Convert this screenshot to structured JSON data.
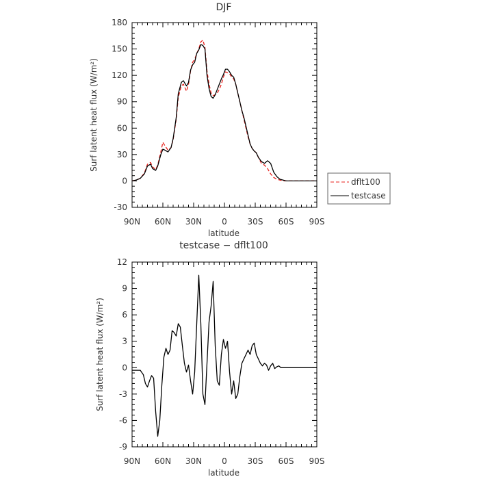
{
  "chart_data": [
    {
      "type": "line",
      "title": "DJF",
      "xlabel": "latitude",
      "ylabel": "Surf latent heat flux (W/m²)",
      "ylim": [
        -30,
        180
      ],
      "yticks": [
        -30,
        0,
        30,
        60,
        90,
        120,
        150,
        180
      ],
      "xlim": [
        90,
        -90
      ],
      "xticks": [
        90,
        60,
        30,
        0,
        -30,
        -60,
        -90
      ],
      "xtick_labels": [
        "90N",
        "60N",
        "30N",
        "0",
        "30S",
        "60S",
        "90S"
      ],
      "grid": false,
      "legend_position": "right",
      "series": [
        {
          "name": "dflt100",
          "color": "#e8201b",
          "dash": "dashed",
          "x": [
            90,
            86,
            82,
            78,
            75,
            72,
            70,
            67,
            65,
            62,
            60,
            58,
            55,
            52,
            50,
            47,
            45,
            42,
            40,
            37,
            35,
            33,
            31,
            29,
            27,
            25,
            23,
            21,
            19,
            17,
            15,
            13,
            11,
            9,
            7,
            5,
            3,
            1,
            -1,
            -3,
            -5,
            -7,
            -9,
            -11,
            -13,
            -15,
            -17,
            -19,
            -21,
            -23,
            -25,
            -27,
            -29,
            -31,
            -33,
            -36,
            -39,
            -42,
            -45,
            -48,
            -51,
            -54,
            -57,
            -60,
            -63,
            -66,
            -69,
            -72,
            -75,
            -78,
            -81,
            -84,
            -87,
            -90
          ],
          "y": [
            0,
            1,
            3,
            9,
            19,
            21,
            16,
            13,
            18,
            33,
            44,
            40,
            35,
            38,
            47,
            70,
            95,
            108,
            110,
            102,
            110,
            125,
            135,
            138,
            145,
            150,
            158,
            160,
            152,
            125,
            110,
            100,
            97,
            98,
            100,
            104,
            110,
            118,
            124,
            123,
            122,
            118,
            116,
            110,
            100,
            90,
            80,
            70,
            60,
            50,
            42,
            37,
            34,
            32,
            27,
            20,
            18,
            14,
            8,
            4,
            2,
            1,
            0,
            0,
            0,
            0,
            0,
            0,
            0,
            0,
            0,
            0,
            0,
            0
          ]
        },
        {
          "name": "testcase",
          "color": "#000000",
          "dash": "solid",
          "x": [
            90,
            86,
            82,
            78,
            75,
            72,
            70,
            67,
            65,
            62,
            60,
            58,
            55,
            52,
            50,
            47,
            45,
            42,
            40,
            37,
            35,
            33,
            31,
            29,
            27,
            25,
            23,
            21,
            19,
            17,
            15,
            13,
            11,
            9,
            7,
            5,
            3,
            1,
            -1,
            -3,
            -5,
            -7,
            -9,
            -11,
            -13,
            -15,
            -17,
            -19,
            -21,
            -23,
            -25,
            -27,
            -29,
            -31,
            -33,
            -36,
            -39,
            -42,
            -45,
            -48,
            -51,
            -54,
            -57,
            -60,
            -63,
            -66,
            -69,
            -72,
            -75,
            -78,
            -81,
            -84,
            -87,
            -90
          ],
          "y": [
            0,
            1,
            3,
            8,
            17,
            19,
            14,
            12,
            17,
            30,
            36,
            35,
            33,
            38,
            48,
            72,
            99,
            112,
            114,
            108,
            112,
            126,
            132,
            135,
            145,
            149,
            155,
            154,
            150,
            120,
            105,
            96,
            94,
            98,
            104,
            110,
            116,
            121,
            127,
            127,
            124,
            120,
            118,
            110,
            100,
            90,
            80,
            72,
            62,
            52,
            42,
            37,
            34,
            32,
            27,
            22,
            20,
            23,
            20,
            10,
            5,
            2,
            1,
            0,
            0,
            0,
            0,
            0,
            0,
            0,
            0,
            0,
            0,
            0
          ]
        }
      ]
    },
    {
      "type": "line",
      "title": "testcase − dflt100",
      "xlabel": "latitude",
      "ylabel": "Surf latent heat flux (W/m²)",
      "ylim": [
        -9,
        12
      ],
      "yticks": [
        -9,
        -6,
        -3,
        0,
        3,
        6,
        9,
        12
      ],
      "xlim": [
        90,
        -90
      ],
      "xticks": [
        90,
        60,
        30,
        0,
        -30,
        -60,
        -90
      ],
      "xtick_labels": [
        "90N",
        "60N",
        "30N",
        "0",
        "30S",
        "60S",
        "90S"
      ],
      "grid": false,
      "series": [
        {
          "color": "#000000",
          "x": [
            90,
            86,
            82,
            79,
            77,
            75,
            73,
            71,
            69,
            67,
            65,
            63,
            61,
            59,
            57,
            55,
            53,
            51,
            49,
            47,
            45,
            43,
            41,
            39,
            37,
            35,
            33,
            31,
            29,
            27,
            25,
            23,
            21,
            19,
            17,
            15,
            13,
            11,
            9,
            7,
            5,
            3,
            1,
            -1,
            -3,
            -5,
            -7,
            -9,
            -11,
            -13,
            -15,
            -17,
            -19,
            -21,
            -23,
            -25,
            -27,
            -29,
            -31,
            -33,
            -35,
            -37,
            -39,
            -41,
            -43,
            -45,
            -47,
            -49,
            -51,
            -53,
            -55,
            -57,
            -59,
            -61,
            -63,
            -65,
            -67,
            -69,
            -71,
            -73,
            -75,
            -77,
            -79,
            -81,
            -83,
            -85,
            -87,
            -90
          ],
          "y": [
            -0.3,
            -0.3,
            -0.3,
            -0.8,
            -1.8,
            -2.2,
            -1.5,
            -0.9,
            -1.2,
            -5.0,
            -7.8,
            -6.0,
            -2.0,
            1.2,
            2.2,
            1.5,
            2.0,
            4.2,
            4.0,
            3.6,
            5.0,
            4.6,
            2.5,
            0.5,
            -0.5,
            0.3,
            -1.5,
            -3.0,
            -0.5,
            5.0,
            10.5,
            5.0,
            -3.0,
            -4.2,
            0.5,
            5.2,
            7.0,
            9.8,
            2.5,
            -1.5,
            -2.0,
            1.5,
            3.2,
            2.2,
            3.0,
            -0.5,
            -3.0,
            -1.5,
            -3.5,
            -3.0,
            -1.0,
            0.5,
            1.0,
            1.5,
            2.0,
            1.5,
            2.5,
            2.8,
            1.5,
            1.0,
            0.5,
            0.2,
            0.5,
            0.3,
            -0.3,
            0.2,
            0.5,
            -0.1,
            0.1,
            0.2,
            0.0,
            0.0,
            0.0,
            0.0,
            0.0,
            0.0,
            0.0,
            0.0,
            0.0,
            0.0,
            0.0,
            0.0,
            0.0,
            0.0,
            0.0,
            0.0,
            0.0,
            0.0
          ]
        }
      ]
    }
  ]
}
